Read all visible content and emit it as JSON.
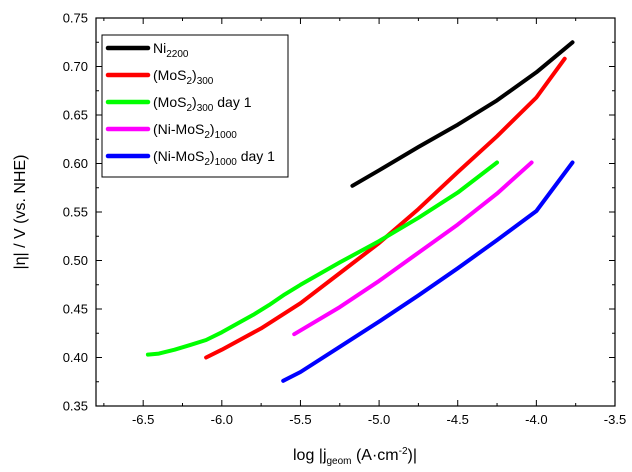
{
  "chart_data": {
    "type": "line",
    "title": "",
    "xlabel": {
      "pre": "log |j",
      "sub": "geom",
      "post": " (A·cm",
      "sup": "-2",
      "end": ")|"
    },
    "ylabel": "|η| / V (vs. NHE)",
    "xlim": [
      -6.8,
      -3.5
    ],
    "ylim": [
      0.35,
      0.75
    ],
    "xticks": [
      -6.5,
      -6.0,
      -5.5,
      -5.0,
      -4.5,
      -4.0,
      -3.5
    ],
    "xtick_labels": [
      "-6.5",
      "-6.0",
      "-5.5",
      "-5.0",
      "-4.5",
      "-4.0",
      "-3.5"
    ],
    "yticks": [
      0.35,
      0.4,
      0.45,
      0.5,
      0.55,
      0.6,
      0.65,
      0.7,
      0.75
    ],
    "ytick_labels": [
      "0.35",
      "0.40",
      "0.45",
      "0.50",
      "0.55",
      "0.60",
      "0.65",
      "0.70",
      "0.75"
    ],
    "grid": false,
    "legend_position": "top-left",
    "series": [
      {
        "legend": [
          {
            "t": "Ni"
          },
          {
            "t": "2200",
            "sub": true
          }
        ],
        "color": "#000000",
        "x": [
          -5.17,
          -5.0,
          -4.75,
          -4.5,
          -4.25,
          -4.0,
          -3.77
        ],
        "y": [
          0.577,
          0.593,
          0.617,
          0.64,
          0.665,
          0.694,
          0.725
        ]
      },
      {
        "legend": [
          {
            "t": "(MoS"
          },
          {
            "t": "2",
            "sub": true
          },
          {
            "t": ")"
          },
          {
            "t": "300",
            "sub": true
          }
        ],
        "color": "#ff0000",
        "x": [
          -6.1,
          -6.0,
          -5.75,
          -5.5,
          -5.25,
          -5.0,
          -4.75,
          -4.5,
          -4.25,
          -4.0,
          -3.82
        ],
        "y": [
          0.4,
          0.408,
          0.43,
          0.456,
          0.487,
          0.518,
          0.553,
          0.591,
          0.628,
          0.668,
          0.708
        ]
      },
      {
        "legend": [
          {
            "t": "(MoS"
          },
          {
            "t": "2",
            "sub": true
          },
          {
            "t": ")"
          },
          {
            "t": "300",
            "sub": true
          },
          {
            "t": " day 1"
          }
        ],
        "color": "#00ff00",
        "x": [
          -6.47,
          -6.4,
          -6.3,
          -6.2,
          -6.1,
          -6.0,
          -5.9,
          -5.8,
          -5.7,
          -5.6,
          -5.5,
          -5.25,
          -5.0,
          -4.75,
          -4.5,
          -4.25
        ],
        "y": [
          0.403,
          0.404,
          0.408,
          0.413,
          0.418,
          0.426,
          0.435,
          0.444,
          0.454,
          0.465,
          0.475,
          0.498,
          0.52,
          0.544,
          0.57,
          0.601
        ]
      },
      {
        "legend": [
          {
            "t": "(Ni-MoS"
          },
          {
            "t": "2",
            "sub": true
          },
          {
            "t": ")"
          },
          {
            "t": "1000",
            "sub": true
          }
        ],
        "color": "#ff00ff",
        "x": [
          -5.54,
          -5.25,
          -5.0,
          -4.75,
          -4.5,
          -4.25,
          -4.03
        ],
        "y": [
          0.424,
          0.452,
          0.479,
          0.508,
          0.537,
          0.569,
          0.601
        ]
      },
      {
        "legend": [
          {
            "t": "(Ni-MoS"
          },
          {
            "t": "2",
            "sub": true
          },
          {
            "t": ")"
          },
          {
            "t": "1000",
            "sub": true
          },
          {
            "t": " day 1"
          }
        ],
        "color": "#0000ff",
        "x": [
          -5.61,
          -5.5,
          -5.25,
          -5.0,
          -4.75,
          -4.5,
          -4.25,
          -4.0,
          -3.77
        ],
        "y": [
          0.376,
          0.385,
          0.411,
          0.437,
          0.464,
          0.492,
          0.521,
          0.551,
          0.601
        ]
      }
    ]
  }
}
